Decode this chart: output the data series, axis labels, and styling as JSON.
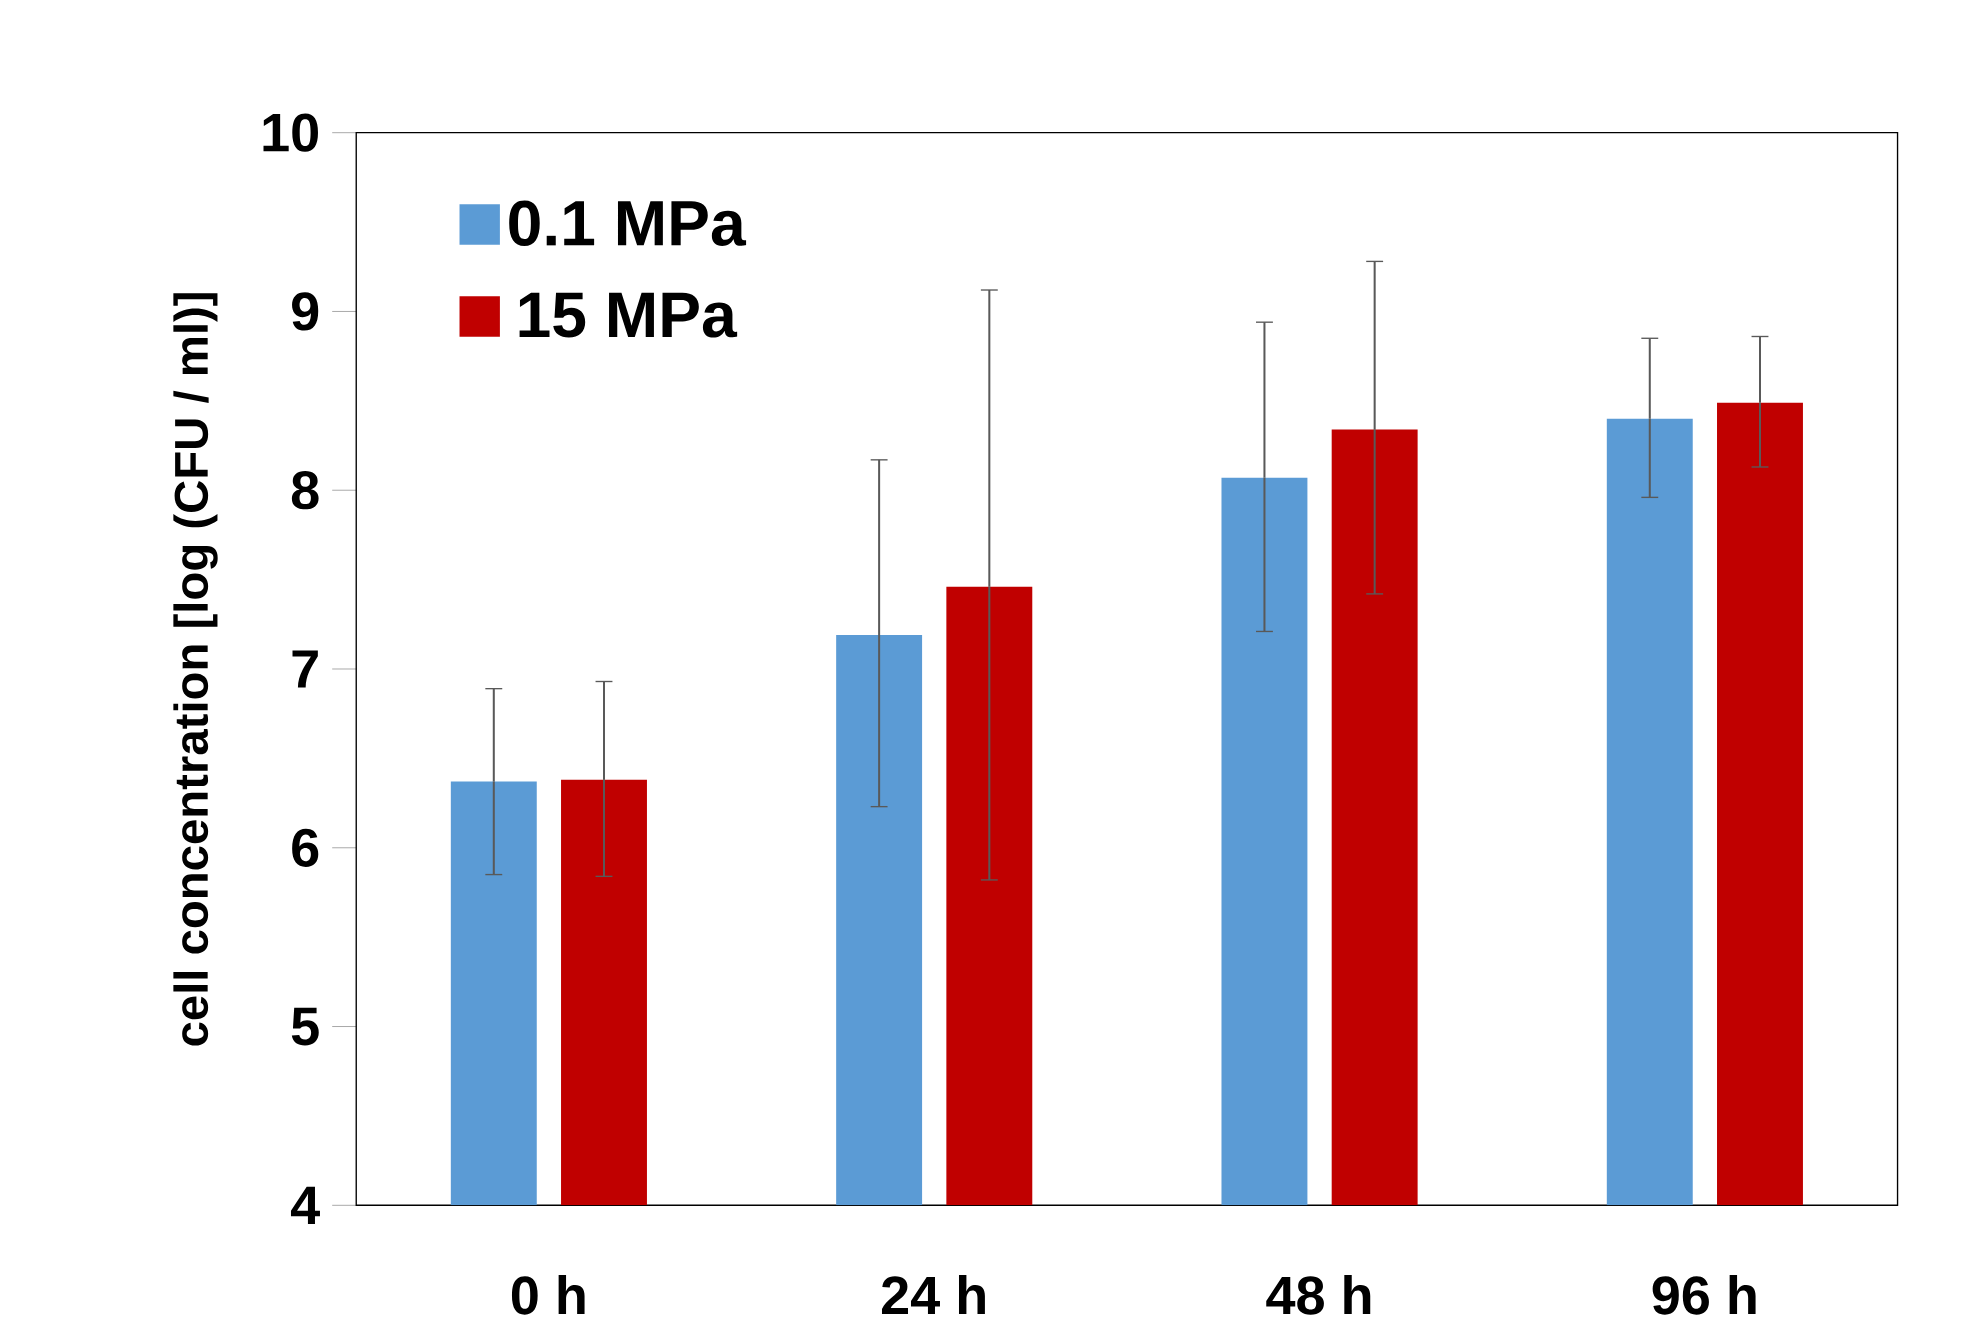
{
  "chart_data": {
    "type": "bar",
    "ylabel": "cell concentration [log (CFU / ml)]",
    "categories": [
      "0 h",
      "24 h",
      "48 h",
      "96 h"
    ],
    "series": [
      {
        "name": "0.1  MPa",
        "color": "#5b9bd5",
        "values": [
          6.37,
          7.19,
          8.07,
          8.4
        ],
        "errors": [
          [
            5.85,
            6.89
          ],
          [
            6.23,
            8.17
          ],
          [
            7.21,
            8.94
          ],
          [
            7.96,
            8.85
          ]
        ]
      },
      {
        "name": "15 MPa",
        "color": "#c00000",
        "values": [
          6.38,
          7.46,
          8.34,
          8.49
        ],
        "errors": [
          [
            5.84,
            6.93
          ],
          [
            5.82,
            9.12
          ],
          [
            7.42,
            9.28
          ],
          [
            8.13,
            8.86
          ]
        ]
      }
    ],
    "ylim": [
      4,
      10
    ],
    "yticks": [
      4,
      5,
      6,
      7,
      8,
      9,
      10
    ],
    "grid": false,
    "legend": "top left"
  }
}
